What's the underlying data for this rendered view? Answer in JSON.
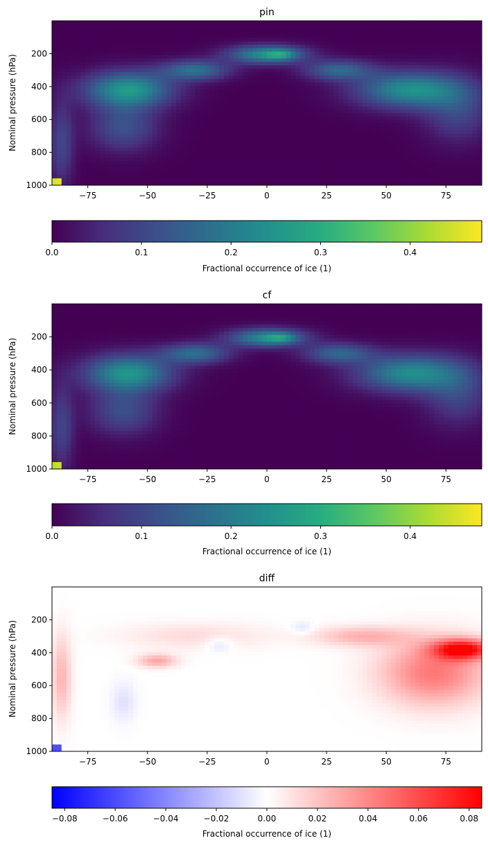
{
  "chart_data": [
    {
      "type": "heatmap",
      "title": "pin",
      "ylabel": "Nominal pressure (hPa)",
      "x_ticks": [
        -75,
        -50,
        -25,
        0,
        25,
        50,
        75
      ],
      "x_tick_labels": [
        "−75",
        "−50",
        "−25",
        "0",
        "25",
        "50",
        "75"
      ],
      "y_ticks": [
        200,
        400,
        600,
        800,
        1000
      ],
      "y_tick_labels": [
        "200",
        "400",
        "600",
        "800",
        "1000"
      ],
      "xlim": [
        -90,
        90
      ],
      "ylim": [
        1000,
        0
      ],
      "colormap": "viridis",
      "colorbar": {
        "label": "Fractional occurrence of ice (1)",
        "range": [
          0,
          0.48
        ],
        "ticks": [
          0.0,
          0.1,
          0.2,
          0.3,
          0.4
        ],
        "tick_labels": [
          "0.0",
          "0.1",
          "0.2",
          "0.3",
          "0.4"
        ]
      }
    },
    {
      "type": "heatmap",
      "title": "cf",
      "ylabel": "Nominal pressure (hPa)",
      "x_ticks": [
        -75,
        -50,
        -25,
        0,
        25,
        50,
        75
      ],
      "x_tick_labels": [
        "−75",
        "−50",
        "−25",
        "0",
        "25",
        "50",
        "75"
      ],
      "y_ticks": [
        200,
        400,
        600,
        800,
        1000
      ],
      "y_tick_labels": [
        "200",
        "400",
        "600",
        "800",
        "1000"
      ],
      "xlim": [
        -90,
        90
      ],
      "ylim": [
        1000,
        0
      ],
      "colormap": "viridis",
      "colorbar": {
        "label": "Fractional occurrence of ice (1)",
        "range": [
          0,
          0.48
        ],
        "ticks": [
          0.0,
          0.1,
          0.2,
          0.3,
          0.4
        ],
        "tick_labels": [
          "0.0",
          "0.1",
          "0.2",
          "0.3",
          "0.4"
        ]
      }
    },
    {
      "type": "heatmap",
      "title": "diff",
      "ylabel": "Nominal pressure (hPa)",
      "x_ticks": [
        -75,
        -50,
        -25,
        0,
        25,
        50,
        75
      ],
      "x_tick_labels": [
        "−75",
        "−50",
        "−25",
        "0",
        "25",
        "50",
        "75"
      ],
      "y_ticks": [
        200,
        400,
        600,
        800,
        1000
      ],
      "y_tick_labels": [
        "200",
        "400",
        "600",
        "800",
        "1000"
      ],
      "xlim": [
        -90,
        90
      ],
      "ylim": [
        1000,
        0
      ],
      "colormap": "bwr",
      "colorbar": {
        "label": "Fractional occurrence of ice (1)",
        "range": [
          -0.085,
          0.085
        ],
        "ticks": [
          -0.08,
          -0.06,
          -0.04,
          -0.02,
          0.0,
          0.02,
          0.04,
          0.06,
          0.08
        ],
        "tick_labels": [
          "−0.08",
          "−0.06",
          "−0.04",
          "−0.02",
          "0.00",
          "0.02",
          "0.04",
          "0.06",
          "0.08"
        ]
      }
    }
  ]
}
